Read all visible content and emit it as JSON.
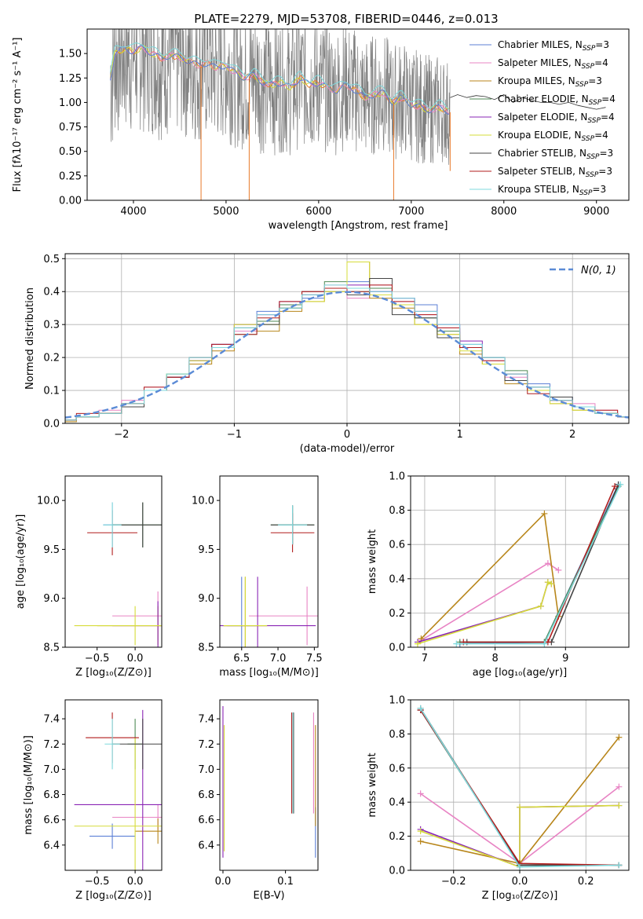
{
  "figure_title": "PLATE=2279, MJD=53708, FIBERID=0446, z=0.013",
  "legend_series": [
    {
      "label": "Chabrier MILES, N",
      "sub": "SSP",
      "suffix": "=3",
      "color": "#5b7fd6"
    },
    {
      "label": "Salpeter MILES, N",
      "sub": "SSP",
      "suffix": "=4",
      "color": "#e884c4"
    },
    {
      "label": "Kroupa MILES, N",
      "sub": "SSP",
      "suffix": "=3",
      "color": "#b8861b"
    },
    {
      "label": "Chabrier ELODIE, N",
      "sub": "SSP",
      "suffix": "=4",
      "color": "#4f8a55"
    },
    {
      "label": "Salpeter ELODIE, N",
      "sub": "SSP",
      "suffix": "=4",
      "color": "#8a25b5"
    },
    {
      "label": "Kroupa ELODIE, N",
      "sub": "SSP",
      "suffix": "=4",
      "color": "#d6dc3a"
    },
    {
      "label": "Chabrier STELIB, N",
      "sub": "SSP",
      "suffix": "=3",
      "color": "#444444"
    },
    {
      "label": "Salpeter STELIB, N",
      "sub": "SSP",
      "suffix": "=3",
      "color": "#b01d1d"
    },
    {
      "label": "Kroupa STELIB, N",
      "sub": "SSP",
      "suffix": "=3",
      "color": "#7fd9dc"
    }
  ],
  "colors": {
    "data": "#808080",
    "model_orange": "#e87a2a",
    "gaussian": "#5b8bd6",
    "grid": "#b0b0b0"
  },
  "chart_data": [
    {
      "type": "line",
      "id": "spectrum",
      "xlabel": "wavelength [Angstrom, rest frame]",
      "ylabel": "Flux [fλ10⁻¹⁷ erg cm⁻² s⁻¹ A⁻¹]",
      "xlim": [
        3500,
        9350
      ],
      "ylim": [
        0,
        1.75
      ],
      "xticks": [
        "4000",
        "5000",
        "6000",
        "7000",
        "8000",
        "9000"
      ],
      "yticks": [
        "0.00",
        "0.25",
        "0.50",
        "0.75",
        "1.00",
        "1.25",
        "1.50"
      ],
      "grid": false,
      "legend": "upper right",
      "continuum": {
        "x": [
          3750,
          3800,
          3900,
          4000,
          4100,
          4200,
          4300,
          4400,
          4500,
          4600,
          4700,
          4800,
          4900,
          5000,
          5100,
          5200,
          5300,
          5400,
          5500,
          5600,
          5700,
          5800,
          5900,
          6000,
          6100,
          6200,
          6300,
          6400,
          6500,
          6600,
          6700,
          6800,
          6900,
          7000,
          7100,
          7200,
          7300,
          7420
        ],
        "y": [
          1.25,
          1.5,
          1.55,
          1.52,
          1.56,
          1.5,
          1.45,
          1.48,
          1.46,
          1.42,
          1.38,
          1.4,
          1.35,
          1.38,
          1.3,
          1.25,
          1.28,
          1.2,
          1.18,
          1.2,
          1.15,
          1.25,
          1.18,
          1.2,
          1.15,
          1.12,
          1.18,
          1.12,
          1.05,
          1.08,
          1.1,
          1.0,
          1.05,
          0.98,
          0.95,
          0.92,
          0.95,
          0.9
        ]
      },
      "tail": {
        "x": [
          7420,
          7500,
          7600,
          7700,
          7800,
          7900,
          8000,
          8100,
          8200,
          8300,
          8400,
          8500,
          8600,
          8700,
          8800,
          8900,
          9000,
          9100
        ],
        "y": [
          1.05,
          1.08,
          1.05,
          1.07,
          1.06,
          1.03,
          1.08,
          1.0,
          1.05,
          1.02,
          1.0,
          1.0,
          0.98,
          1.0,
          0.97,
          0.95,
          0.93,
          0.95
        ]
      }
    },
    {
      "type": "histogram",
      "id": "residuals",
      "xlabel": "(data-model)/error",
      "ylabel": "Normed distribution",
      "xlim": [
        -2.5,
        2.5
      ],
      "ylim": [
        0,
        0.515
      ],
      "xticks": [
        "−2",
        "−1",
        "0",
        "1",
        "2"
      ],
      "yticks": [
        "0.0",
        "0.1",
        "0.2",
        "0.3",
        "0.4",
        "0.5"
      ],
      "grid": true,
      "legend": "upper right",
      "gaussian_label": "N(0, 1)",
      "bin_edges": [
        -2.6,
        -2.4,
        -2.2,
        -2.0,
        -1.8,
        -1.6,
        -1.4,
        -1.2,
        -1.0,
        -0.8,
        -0.6,
        -0.4,
        -0.2,
        0.0,
        0.2,
        0.4,
        0.6,
        0.8,
        1.0,
        1.2,
        1.4,
        1.6,
        1.8,
        2.0,
        2.2,
        2.4,
        2.6
      ],
      "series_counts": [
        [
          0.01,
          0.02,
          0.03,
          0.06,
          0.1,
          0.15,
          0.2,
          0.24,
          0.3,
          0.34,
          0.36,
          0.38,
          0.4,
          0.43,
          0.4,
          0.38,
          0.36,
          0.3,
          0.24,
          0.2,
          0.15,
          0.12,
          0.08,
          0.05,
          0.03,
          0.02
        ],
        [
          0.01,
          0.02,
          0.04,
          0.07,
          0.11,
          0.14,
          0.19,
          0.23,
          0.28,
          0.33,
          0.35,
          0.4,
          0.42,
          0.38,
          0.42,
          0.37,
          0.33,
          0.29,
          0.23,
          0.19,
          0.14,
          0.1,
          0.07,
          0.06,
          0.04,
          0.02
        ],
        [
          0.005,
          0.02,
          0.03,
          0.05,
          0.1,
          0.14,
          0.18,
          0.22,
          0.3,
          0.28,
          0.34,
          0.37,
          0.4,
          0.49,
          0.38,
          0.35,
          0.3,
          0.27,
          0.21,
          0.18,
          0.12,
          0.1,
          0.06,
          0.04,
          0.03,
          0.02
        ],
        [
          0.01,
          0.02,
          0.03,
          0.06,
          0.1,
          0.15,
          0.19,
          0.23,
          0.27,
          0.31,
          0.36,
          0.39,
          0.43,
          0.4,
          0.41,
          0.36,
          0.32,
          0.28,
          0.23,
          0.2,
          0.16,
          0.1,
          0.07,
          0.05,
          0.03,
          0.02
        ],
        [
          0.01,
          0.02,
          0.03,
          0.06,
          0.1,
          0.14,
          0.19,
          0.24,
          0.3,
          0.33,
          0.37,
          0.39,
          0.41,
          0.42,
          0.4,
          0.38,
          0.34,
          0.3,
          0.25,
          0.2,
          0.15,
          0.11,
          0.07,
          0.05,
          0.03,
          0.02
        ],
        [
          0.01,
          0.02,
          0.03,
          0.06,
          0.1,
          0.15,
          0.19,
          0.23,
          0.3,
          0.3,
          0.35,
          0.37,
          0.4,
          0.49,
          0.39,
          0.36,
          0.3,
          0.27,
          0.22,
          0.18,
          0.13,
          0.1,
          0.06,
          0.04,
          0.03,
          0.02
        ],
        [
          0.01,
          0.02,
          0.03,
          0.05,
          0.1,
          0.14,
          0.2,
          0.23,
          0.29,
          0.3,
          0.35,
          0.4,
          0.41,
          0.39,
          0.44,
          0.33,
          0.32,
          0.26,
          0.23,
          0.2,
          0.13,
          0.11,
          0.08,
          0.05,
          0.03,
          0.02
        ],
        [
          0.01,
          0.03,
          0.03,
          0.06,
          0.11,
          0.14,
          0.2,
          0.24,
          0.27,
          0.32,
          0.37,
          0.4,
          0.41,
          0.4,
          0.42,
          0.37,
          0.33,
          0.29,
          0.23,
          0.19,
          0.15,
          0.09,
          0.07,
          0.05,
          0.04,
          0.02
        ],
        [
          0.01,
          0.02,
          0.03,
          0.06,
          0.1,
          0.15,
          0.2,
          0.23,
          0.29,
          0.33,
          0.35,
          0.39,
          0.42,
          0.41,
          0.4,
          0.38,
          0.34,
          0.3,
          0.24,
          0.2,
          0.15,
          0.11,
          0.07,
          0.05,
          0.03,
          0.02
        ]
      ]
    },
    {
      "type": "errorbar",
      "id": "age-vs-z",
      "xlabel": "Z [log₁₀(Z/Z⊙)]",
      "ylabel": "age  [log₁₀(age/yr)]",
      "xlim": [
        -0.92,
        0.35
      ],
      "ylim": [
        8.5,
        10.25
      ],
      "xticks": [
        "−0.5",
        "0.0"
      ],
      "yticks": [
        "8.5",
        "9.0",
        "9.5",
        "10.0"
      ],
      "points": [
        {
          "s": 0,
          "x": -0.3,
          "y": 9.75,
          "xerr": 0.12,
          "yerr": 0.23
        },
        {
          "s": 1,
          "x": 0.3,
          "y": 8.82,
          "xerr": 0.6,
          "yerr": 0.25
        },
        {
          "s": 2,
          "x": 0.3,
          "y": 8.72,
          "xerr": 0.8,
          "yerr": 0.2
        },
        {
          "s": 3,
          "x": 0.1,
          "y": 9.75,
          "xerr": 0.4,
          "yerr": 0.23
        },
        {
          "s": 4,
          "x": 0.3,
          "y": 8.72,
          "xerr": 0.6,
          "yerr": 0.25
        },
        {
          "s": 5,
          "x": 0.0,
          "y": 8.72,
          "xerr": 0.8,
          "yerr": 0.2
        },
        {
          "s": 6,
          "x": 0.1,
          "y": 9.75,
          "xerr": 0.4,
          "yerr": 0.23
        },
        {
          "s": 7,
          "x": -0.3,
          "y": 9.67,
          "xerr": 0.33,
          "yerr": 0.23
        },
        {
          "s": 8,
          "x": -0.3,
          "y": 9.75,
          "xerr": 0.12,
          "yerr": 0.23
        }
      ]
    },
    {
      "type": "errorbar",
      "id": "age-vs-mass",
      "xlabel": "mass [log₁₀(M/M⊙)]",
      "ylabel": "",
      "xlim": [
        6.2,
        7.55
      ],
      "ylim": [
        8.5,
        10.25
      ],
      "xticks": [
        "6.5",
        "7.0",
        "7.5"
      ],
      "yticks": [
        "8.5",
        "9.0",
        "9.5",
        "10.0"
      ],
      "points": [
        {
          "s": 0,
          "x": 6.5,
          "y": 8.72,
          "xerr": 0.2,
          "yerr": 0.5
        },
        {
          "s": 1,
          "x": 7.4,
          "y": 8.82,
          "xerr": 0.8,
          "yerr": 0.3
        },
        {
          "s": 2,
          "x": 6.55,
          "y": 8.72,
          "xerr": 0.3,
          "yerr": 0.5
        },
        {
          "s": 3,
          "x": 7.2,
          "y": 9.75,
          "xerr": 0.3,
          "yerr": 0.2
        },
        {
          "s": 4,
          "x": 6.72,
          "y": 8.72,
          "xerr": 0.8,
          "yerr": 0.5
        },
        {
          "s": 5,
          "x": 6.55,
          "y": 8.72,
          "xerr": 0.3,
          "yerr": 0.5
        },
        {
          "s": 6,
          "x": 7.2,
          "y": 9.75,
          "xerr": 0.3,
          "yerr": 0.2
        },
        {
          "s": 7,
          "x": 7.2,
          "y": 9.67,
          "xerr": 0.3,
          "yerr": 0.2
        },
        {
          "s": 8,
          "x": 7.2,
          "y": 9.75,
          "xerr": 0.2,
          "yerr": 0.2
        }
      ]
    },
    {
      "type": "line",
      "id": "weight-vs-age",
      "xlabel": "age  [log₁₀(age/yr)]",
      "ylabel": "mass weight",
      "xlim": [
        6.8,
        9.9
      ],
      "ylim": [
        0,
        1.0
      ],
      "xticks": [
        "7",
        "8",
        "9"
      ],
      "yticks": [
        "0.0",
        "0.2",
        "0.4",
        "0.6",
        "0.8",
        "1.0"
      ],
      "grid": true,
      "series": [
        {
          "s": 0,
          "x": [
            7.5,
            8.7,
            9.75
          ],
          "y": [
            0.02,
            0.03,
            0.95
          ]
        },
        {
          "s": 1,
          "x": [
            6.95,
            8.75,
            8.9
          ],
          "y": [
            0.04,
            0.49,
            0.45
          ]
        },
        {
          "s": 2,
          "x": [
            6.95,
            8.7,
            8.9
          ],
          "y": [
            0.05,
            0.78,
            0.18
          ]
        },
        {
          "s": 3,
          "x": [
            7.5,
            8.7,
            9.75
          ],
          "y": [
            0.03,
            0.03,
            0.94
          ]
        },
        {
          "s": 4,
          "x": [
            6.9,
            8.65,
            8.75,
            8.8
          ],
          "y": [
            0.03,
            0.24,
            0.38,
            0.37
          ]
        },
        {
          "s": 5,
          "x": [
            6.9,
            8.65,
            8.75,
            8.8
          ],
          "y": [
            0.02,
            0.24,
            0.38,
            0.37
          ]
        },
        {
          "s": 6,
          "x": [
            7.6,
            8.8,
            9.75
          ],
          "y": [
            0.03,
            0.03,
            0.95
          ]
        },
        {
          "s": 7,
          "x": [
            7.55,
            8.75,
            9.7
          ],
          "y": [
            0.03,
            0.03,
            0.94
          ]
        },
        {
          "s": 8,
          "x": [
            7.45,
            8.7,
            9.78
          ],
          "y": [
            0.02,
            0.02,
            0.95
          ]
        }
      ]
    },
    {
      "type": "errorbar",
      "id": "mass-vs-z",
      "xlabel": "Z [log₁₀(Z/Z⊙)]",
      "ylabel": "mass [log₁₀(M/M⊙)]",
      "xlim": [
        -0.92,
        0.35
      ],
      "ylim": [
        6.2,
        7.55
      ],
      "xticks": [
        "−0.5",
        "0.0"
      ],
      "yticks": [
        "6.4",
        "6.6",
        "6.8",
        "7.0",
        "7.2",
        "7.4"
      ],
      "points": [
        {
          "s": 0,
          "x": -0.3,
          "y": 6.47,
          "xerr": 0.3,
          "yerr": 0.1
        },
        {
          "s": 1,
          "x": 0.3,
          "y": 6.62,
          "xerr": 0.6,
          "yerr": 0.1
        },
        {
          "s": 2,
          "x": 0.3,
          "y": 6.51,
          "xerr": 0.3,
          "yerr": 0.1
        },
        {
          "s": 3,
          "x": 0.0,
          "y": 7.2,
          "xerr": 0.1,
          "yerr": 0.2
        },
        {
          "s": 4,
          "x": 0.1,
          "y": 6.72,
          "xerr": 0.9,
          "yerr": 0.75
        },
        {
          "s": 5,
          "x": 0.0,
          "y": 6.55,
          "xerr": 0.8,
          "yerr": 0.7
        },
        {
          "s": 6,
          "x": 0.1,
          "y": 7.2,
          "xerr": 0.4,
          "yerr": 0.2
        },
        {
          "s": 7,
          "x": -0.3,
          "y": 7.25,
          "xerr": 0.35,
          "yerr": 0.2
        },
        {
          "s": 8,
          "x": -0.3,
          "y": 7.2,
          "xerr": 0.1,
          "yerr": 0.2
        }
      ]
    },
    {
      "type": "errorbar",
      "id": "mass-vs-ebv",
      "xlabel": "E(B-V)",
      "ylabel": "",
      "xlim": [
        -0.005,
        0.152
      ],
      "ylim": [
        6.2,
        7.55
      ],
      "xticks": [
        "0.0",
        "0.1"
      ],
      "yticks": [
        "6.4",
        "6.6",
        "6.8",
        "7.0",
        "7.2",
        "7.4"
      ],
      "points": [
        {
          "s": 0,
          "x": 0.148,
          "y": 6.5,
          "xerr": 0.0,
          "yerr": 0.2
        },
        {
          "s": 1,
          "x": 0.145,
          "y": 7.05,
          "xerr": 0.0,
          "yerr": 0.4
        },
        {
          "s": 2,
          "x": 0.148,
          "y": 6.95,
          "xerr": 0.0,
          "yerr": 0.4
        },
        {
          "s": 3,
          "x": 0.112,
          "y": 7.05,
          "xerr": 0.0,
          "yerr": 0.4
        },
        {
          "s": 4,
          "x": 0.0,
          "y": 6.9,
          "xerr": 0.0,
          "yerr": 0.6
        },
        {
          "s": 5,
          "x": 0.002,
          "y": 6.85,
          "xerr": 0.0,
          "yerr": 0.5
        },
        {
          "s": 6,
          "x": 0.113,
          "y": 7.05,
          "xerr": 0.0,
          "yerr": 0.4
        },
        {
          "s": 7,
          "x": 0.11,
          "y": 7.05,
          "xerr": 0.0,
          "yerr": 0.4
        },
        {
          "s": 8,
          "x": 0.112,
          "y": 7.05,
          "xerr": 0.0,
          "yerr": 0.4
        }
      ]
    },
    {
      "type": "line",
      "id": "weight-vs-z",
      "xlabel": "Z [log₁₀(Z/Z⊙)]",
      "ylabel": "mass weight",
      "xlim": [
        -0.33,
        0.33
      ],
      "ylim": [
        0,
        1.0
      ],
      "xticks": [
        "−0.2",
        "0.0",
        "0.2"
      ],
      "yticks": [
        "0.0",
        "0.2",
        "0.4",
        "0.6",
        "0.8",
        "1.0"
      ],
      "grid": true,
      "series": [
        {
          "s": 0,
          "x": [
            -0.3,
            0.0,
            0.3
          ],
          "y": [
            0.94,
            0.03,
            0.03
          ]
        },
        {
          "s": 1,
          "x": [
            -0.3,
            0.0,
            0.3
          ],
          "y": [
            0.45,
            0.04,
            0.49
          ]
        },
        {
          "s": 2,
          "x": [
            -0.3,
            0.0,
            0.3
          ],
          "y": [
            0.17,
            0.04,
            0.78
          ]
        },
        {
          "s": 3,
          "x": [
            -0.3,
            0.0,
            0.3
          ],
          "y": [
            0.94,
            0.03,
            0.03
          ]
        },
        {
          "s": 4,
          "x": [
            -0.3,
            0.0,
            0.0,
            0.3
          ],
          "y": [
            0.24,
            0.02,
            0.37,
            0.38
          ]
        },
        {
          "s": 5,
          "x": [
            -0.3,
            0.0,
            0.0,
            0.3
          ],
          "y": [
            0.23,
            0.02,
            0.37,
            0.38
          ]
        },
        {
          "s": 6,
          "x": [
            -0.3,
            0.0,
            0.3
          ],
          "y": [
            0.95,
            0.03,
            0.03
          ]
        },
        {
          "s": 7,
          "x": [
            -0.3,
            0.0,
            0.3
          ],
          "y": [
            0.94,
            0.04,
            0.03
          ]
        },
        {
          "s": 8,
          "x": [
            -0.3,
            0.0,
            0.3
          ],
          "y": [
            0.95,
            0.02,
            0.03
          ]
        }
      ]
    }
  ]
}
